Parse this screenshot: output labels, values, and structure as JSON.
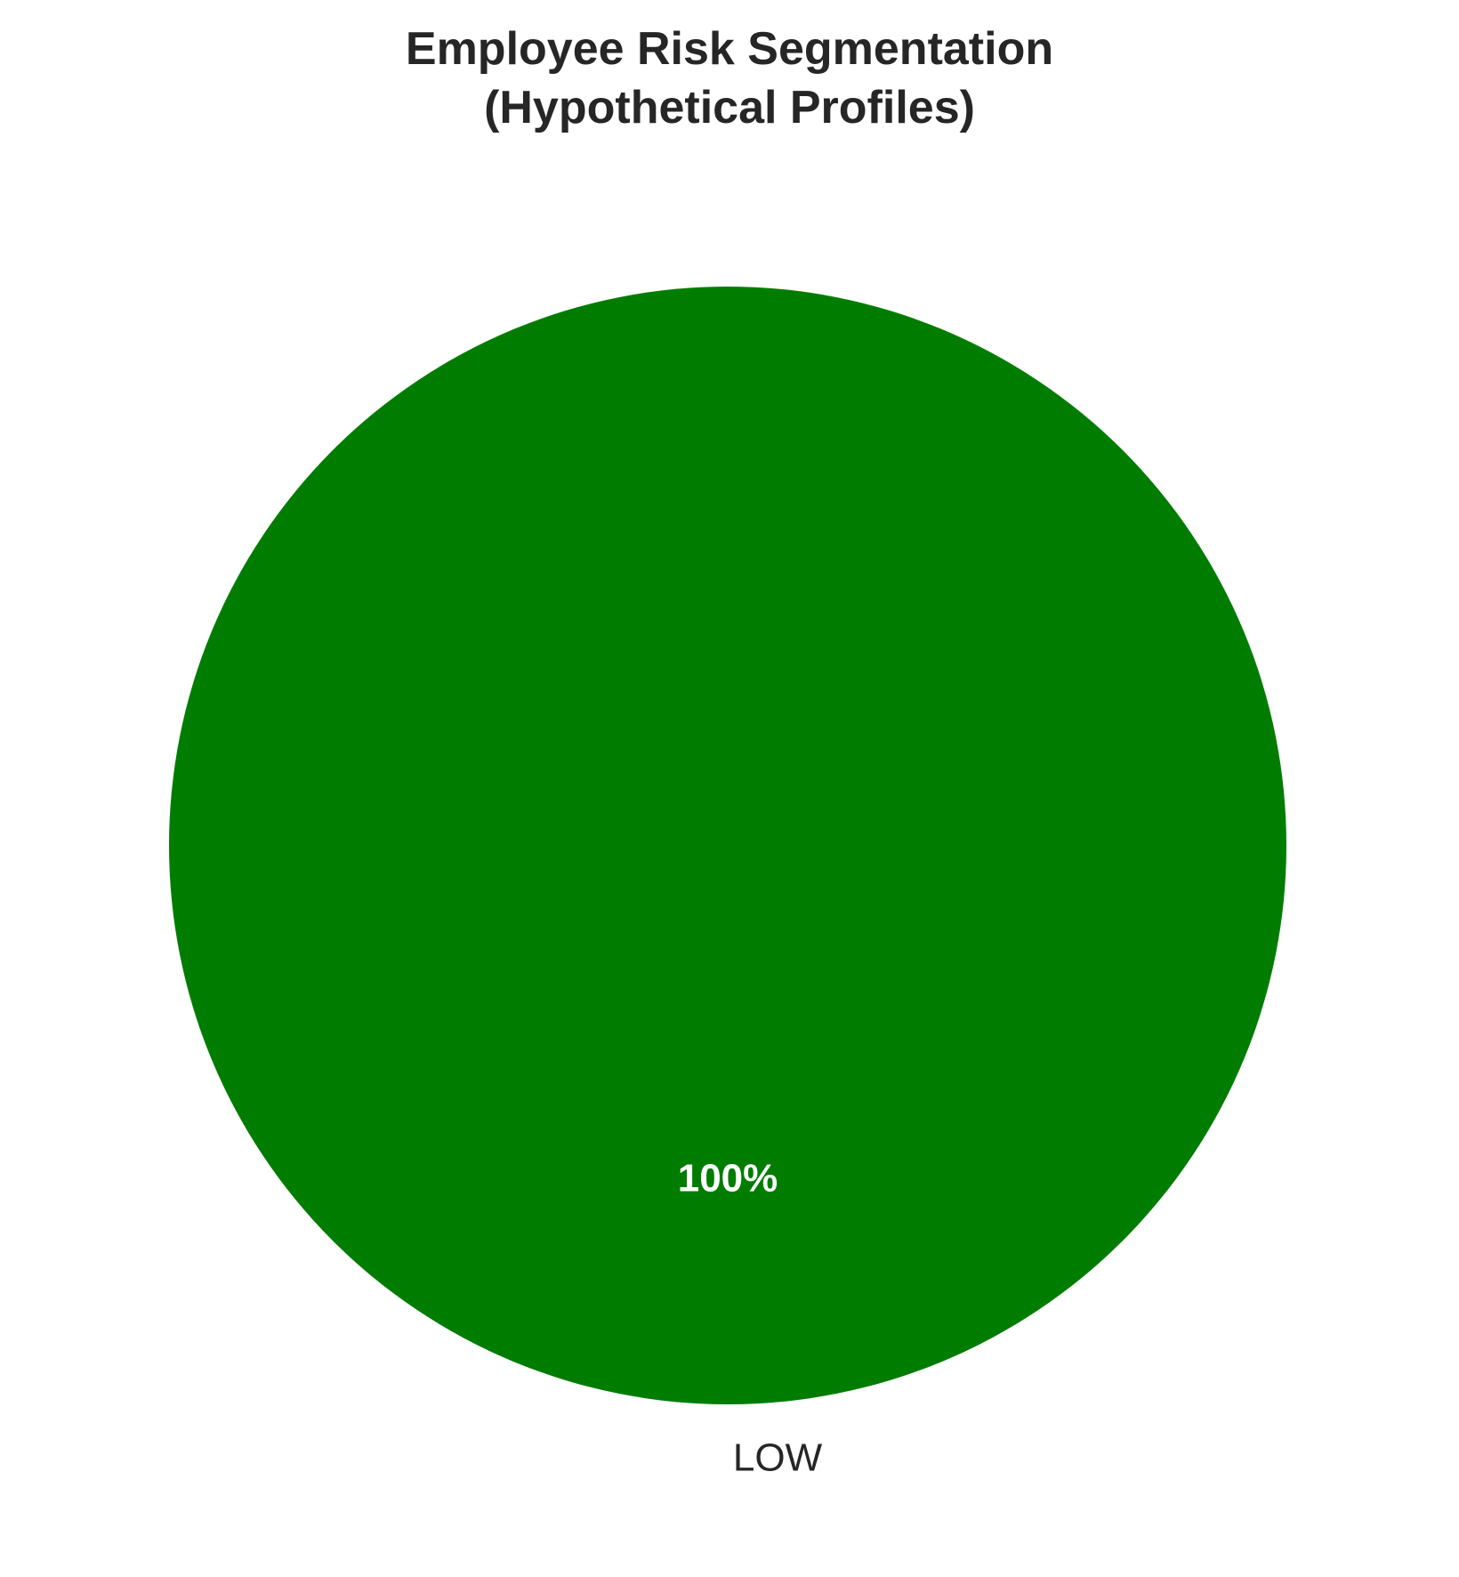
{
  "chart_data": {
    "type": "pie",
    "title": "Employee Risk Segmentation\n(Hypothetical Profiles)",
    "title_lines": [
      "Employee Risk Segmentation",
      "(Hypothetical Profiles)"
    ],
    "categories": [
      "LOW"
    ],
    "values": [
      100
    ],
    "labels": [
      "100%"
    ],
    "colors": [
      "#007d00"
    ],
    "legend": "none"
  }
}
